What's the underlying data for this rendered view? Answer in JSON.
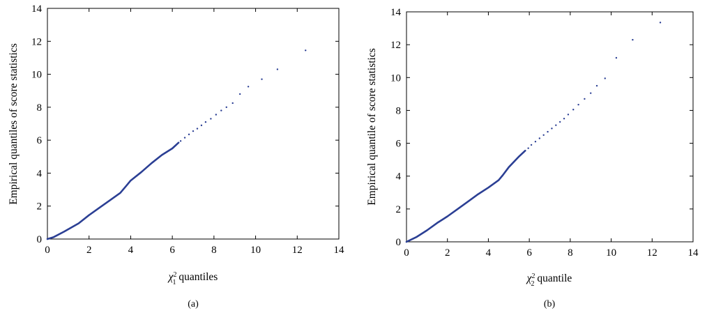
{
  "chart_data": [
    {
      "type": "scatter",
      "caption": "(a)",
      "xlabel_base": "χ",
      "xlabel_sub": "1",
      "xlabel_sup": "2",
      "xlabel_tail": " quantiles",
      "ylabel": "Empirical quantiles of score statistics",
      "xlim": [
        0,
        14
      ],
      "ylim": [
        0,
        14
      ],
      "xticks": [
        "0",
        "2",
        "4",
        "6",
        "8",
        "10",
        "12",
        "14"
      ],
      "yticks": [
        "0",
        "2",
        "4",
        "6",
        "8",
        "10",
        "12",
        "14"
      ],
      "marker_color": "#2b3f94",
      "grid": false,
      "curve": [
        [
          0,
          0
        ],
        [
          0.3,
          0.12
        ],
        [
          0.8,
          0.45
        ],
        [
          1.5,
          0.95
        ],
        [
          2.0,
          1.45
        ],
        [
          2.5,
          1.9
        ],
        [
          3.0,
          2.35
        ],
        [
          3.5,
          2.8
        ],
        [
          3.8,
          3.25
        ],
        [
          4.0,
          3.55
        ],
        [
          4.5,
          4.05
        ],
        [
          5.0,
          4.6
        ],
        [
          5.5,
          5.1
        ],
        [
          6.0,
          5.5
        ],
        [
          6.3,
          5.85
        ]
      ],
      "tail_points": [
        [
          6.4,
          5.95
        ],
        [
          6.6,
          6.15
        ],
        [
          6.8,
          6.35
        ],
        [
          7.0,
          6.55
        ],
        [
          7.2,
          6.7
        ],
        [
          7.4,
          6.9
        ],
        [
          7.6,
          7.1
        ],
        [
          7.85,
          7.3
        ],
        [
          8.1,
          7.55
        ],
        [
          8.35,
          7.8
        ],
        [
          8.6,
          8.0
        ],
        [
          8.9,
          8.25
        ],
        [
          9.25,
          8.8
        ],
        [
          9.65,
          9.25
        ],
        [
          10.3,
          9.7
        ],
        [
          11.05,
          10.3
        ],
        [
          12.4,
          11.45
        ]
      ]
    },
    {
      "type": "scatter",
      "caption": "(b)",
      "xlabel_base": "χ",
      "xlabel_sub": "2",
      "xlabel_sup": "2",
      "xlabel_tail": " quantile",
      "ylabel": "Empirical quantile of score statistics",
      "xlim": [
        0,
        14
      ],
      "ylim": [
        0,
        14
      ],
      "xticks": [
        "0",
        "2",
        "4",
        "6",
        "8",
        "10",
        "12",
        "14"
      ],
      "yticks": [
        "0",
        "2",
        "4",
        "6",
        "8",
        "10",
        "12",
        "14"
      ],
      "marker_color": "#2b3f94",
      "grid": false,
      "curve": [
        [
          0,
          0
        ],
        [
          0.5,
          0.3
        ],
        [
          1.0,
          0.7
        ],
        [
          1.5,
          1.15
        ],
        [
          2.0,
          1.55
        ],
        [
          2.5,
          2.0
        ],
        [
          3.0,
          2.45
        ],
        [
          3.5,
          2.9
        ],
        [
          4.0,
          3.3
        ],
        [
          4.5,
          3.75
        ],
        [
          4.7,
          4.05
        ],
        [
          5.0,
          4.55
        ],
        [
          5.5,
          5.2
        ],
        [
          5.8,
          5.55
        ]
      ],
      "tail_points": [
        [
          5.95,
          5.7
        ],
        [
          6.1,
          5.9
        ],
        [
          6.3,
          6.1
        ],
        [
          6.5,
          6.3
        ],
        [
          6.7,
          6.5
        ],
        [
          6.9,
          6.7
        ],
        [
          7.1,
          6.9
        ],
        [
          7.3,
          7.1
        ],
        [
          7.5,
          7.3
        ],
        [
          7.7,
          7.5
        ],
        [
          7.9,
          7.75
        ],
        [
          8.15,
          8.05
        ],
        [
          8.4,
          8.35
        ],
        [
          8.7,
          8.7
        ],
        [
          9.0,
          9.05
        ],
        [
          9.3,
          9.5
        ],
        [
          9.7,
          9.95
        ],
        [
          10.25,
          11.2
        ],
        [
          11.05,
          12.3
        ],
        [
          12.4,
          13.35
        ]
      ]
    }
  ]
}
